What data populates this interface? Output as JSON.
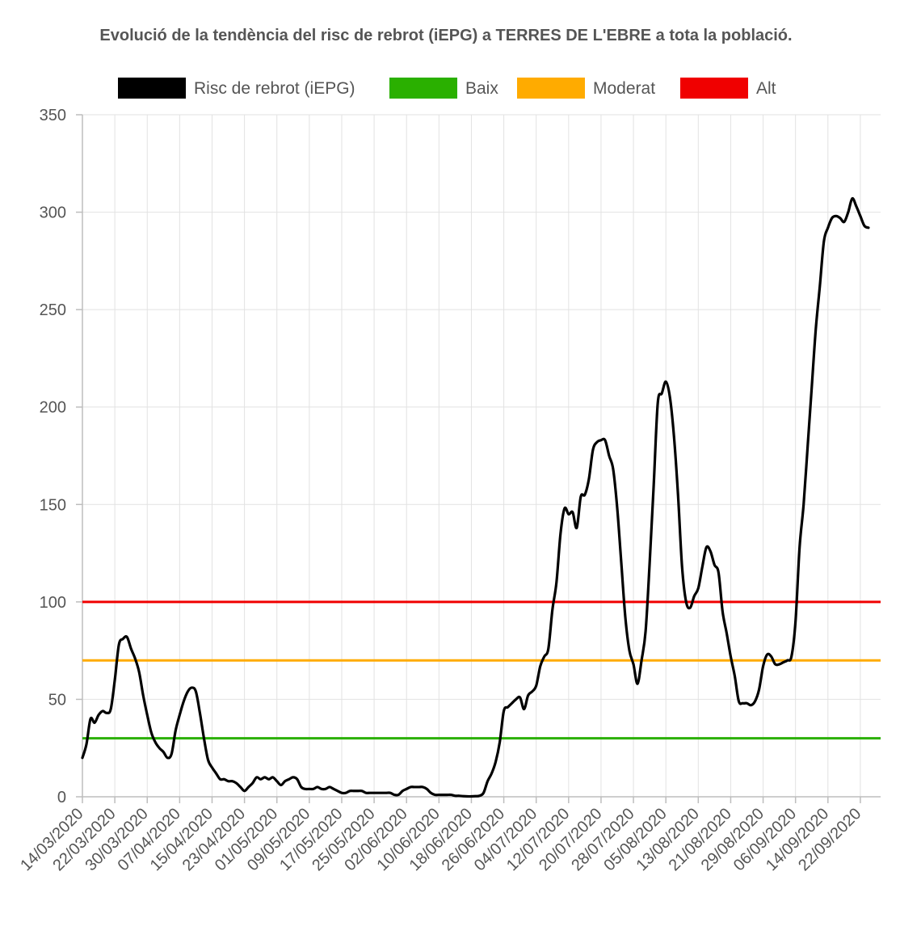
{
  "chart_data": {
    "type": "line",
    "title": "Evolució de la tendència del risc de rebrot (iEPG) a TERRES DE L'EBRE a tota la població.",
    "xlabel": "",
    "ylabel": "",
    "ylim": [
      0,
      350
    ],
    "yticks": [
      0,
      50,
      100,
      150,
      200,
      250,
      300,
      350
    ],
    "grid": true,
    "legend_position": "top",
    "x_start": "14/03/2020",
    "x_end": "27/09/2020",
    "x_tick_labels": [
      "14/03/2020",
      "22/03/2020",
      "30/03/2020",
      "07/04/2020",
      "15/04/2020",
      "23/04/2020",
      "01/05/2020",
      "09/05/2020",
      "17/05/2020",
      "25/05/2020",
      "02/06/2020",
      "10/06/2020",
      "18/06/2020",
      "26/06/2020",
      "04/07/2020",
      "12/07/2020",
      "20/07/2020",
      "28/07/2020",
      "05/08/2020",
      "13/08/2020",
      "21/08/2020",
      "29/08/2020",
      "06/09/2020",
      "14/09/2020",
      "22/09/2020"
    ],
    "legend": [
      {
        "label": "Risc de rebrot (iEPG)",
        "color": "#000000"
      },
      {
        "label": "Baix",
        "color": "#2ab000"
      },
      {
        "label": "Moderat",
        "color": "#ffab00"
      },
      {
        "label": "Alt",
        "color": "#f00000"
      }
    ],
    "thresholds": [
      {
        "name": "Baix",
        "value": 30,
        "color": "#2ab000"
      },
      {
        "name": "Moderat",
        "value": 70,
        "color": "#ffab00"
      },
      {
        "name": "Alt",
        "value": 100,
        "color": "#f00000"
      }
    ],
    "series": [
      {
        "name": "Risc de rebrot (iEPG)",
        "color": "#000000",
        "points": [
          [
            "14/03/2020",
            20
          ],
          [
            "15/03/2020",
            27
          ],
          [
            "16/03/2020",
            40
          ],
          [
            "17/03/2020",
            38
          ],
          [
            "18/03/2020",
            42
          ],
          [
            "19/03/2020",
            44
          ],
          [
            "20/03/2020",
            43
          ],
          [
            "21/03/2020",
            45
          ],
          [
            "22/03/2020",
            60
          ],
          [
            "23/03/2020",
            78
          ],
          [
            "24/03/2020",
            81
          ],
          [
            "25/03/2020",
            82
          ],
          [
            "26/03/2020",
            76
          ],
          [
            "27/03/2020",
            71
          ],
          [
            "28/03/2020",
            64
          ],
          [
            "29/03/2020",
            52
          ],
          [
            "30/03/2020",
            42
          ],
          [
            "31/03/2020",
            33
          ],
          [
            "01/04/2020",
            28
          ],
          [
            "02/04/2020",
            25
          ],
          [
            "03/04/2020",
            23
          ],
          [
            "04/04/2020",
            20
          ],
          [
            "05/04/2020",
            22
          ],
          [
            "06/04/2020",
            34
          ],
          [
            "07/04/2020",
            42
          ],
          [
            "08/04/2020",
            49
          ],
          [
            "09/04/2020",
            54
          ],
          [
            "10/04/2020",
            56
          ],
          [
            "11/04/2020",
            54
          ],
          [
            "12/04/2020",
            43
          ],
          [
            "13/04/2020",
            30
          ],
          [
            "14/04/2020",
            19
          ],
          [
            "15/04/2020",
            15
          ],
          [
            "16/04/2020",
            12
          ],
          [
            "17/04/2020",
            9
          ],
          [
            "18/04/2020",
            9
          ],
          [
            "19/04/2020",
            8
          ],
          [
            "20/04/2020",
            8
          ],
          [
            "21/04/2020",
            7
          ],
          [
            "22/04/2020",
            5
          ],
          [
            "23/04/2020",
            3
          ],
          [
            "24/04/2020",
            5
          ],
          [
            "25/04/2020",
            7
          ],
          [
            "26/04/2020",
            10
          ],
          [
            "27/04/2020",
            9
          ],
          [
            "28/04/2020",
            10
          ],
          [
            "29/04/2020",
            9
          ],
          [
            "30/04/2020",
            10
          ],
          [
            "01/05/2020",
            8
          ],
          [
            "02/05/2020",
            6
          ],
          [
            "03/05/2020",
            8
          ],
          [
            "04/05/2020",
            9
          ],
          [
            "05/05/2020",
            10
          ],
          [
            "06/05/2020",
            9
          ],
          [
            "07/05/2020",
            5
          ],
          [
            "08/05/2020",
            4
          ],
          [
            "09/05/2020",
            4
          ],
          [
            "10/05/2020",
            4
          ],
          [
            "11/05/2020",
            5
          ],
          [
            "12/05/2020",
            4
          ],
          [
            "13/05/2020",
            4
          ],
          [
            "14/05/2020",
            5
          ],
          [
            "15/05/2020",
            4
          ],
          [
            "16/05/2020",
            3
          ],
          [
            "17/05/2020",
            2
          ],
          [
            "18/05/2020",
            2
          ],
          [
            "19/05/2020",
            3
          ],
          [
            "20/05/2020",
            3
          ],
          [
            "21/05/2020",
            3
          ],
          [
            "22/05/2020",
            3
          ],
          [
            "23/05/2020",
            2
          ],
          [
            "24/05/2020",
            2
          ],
          [
            "25/05/2020",
            2
          ],
          [
            "26/05/2020",
            2
          ],
          [
            "27/05/2020",
            2
          ],
          [
            "28/05/2020",
            2
          ],
          [
            "29/05/2020",
            2
          ],
          [
            "30/05/2020",
            1
          ],
          [
            "31/05/2020",
            1
          ],
          [
            "01/06/2020",
            3
          ],
          [
            "02/06/2020",
            4
          ],
          [
            "03/06/2020",
            5
          ],
          [
            "04/06/2020",
            5
          ],
          [
            "05/06/2020",
            5
          ],
          [
            "06/06/2020",
            5
          ],
          [
            "07/06/2020",
            4
          ],
          [
            "08/06/2020",
            2
          ],
          [
            "09/06/2020",
            1
          ],
          [
            "10/06/2020",
            1
          ],
          [
            "11/06/2020",
            1
          ],
          [
            "12/06/2020",
            1
          ],
          [
            "13/06/2020",
            1
          ],
          [
            "14/06/2020",
            0.5
          ],
          [
            "15/06/2020",
            0.5
          ],
          [
            "16/06/2020",
            0.3
          ],
          [
            "17/06/2020",
            0.2
          ],
          [
            "18/06/2020",
            0.2
          ],
          [
            "19/06/2020",
            0.3
          ],
          [
            "20/06/2020",
            0.5
          ],
          [
            "21/06/2020",
            2
          ],
          [
            "22/06/2020",
            8
          ],
          [
            "23/06/2020",
            12
          ],
          [
            "24/06/2020",
            18
          ],
          [
            "25/06/2020",
            28
          ],
          [
            "26/06/2020",
            44
          ],
          [
            "27/06/2020",
            46
          ],
          [
            "28/06/2020",
            48
          ],
          [
            "29/06/2020",
            50
          ],
          [
            "30/06/2020",
            51
          ],
          [
            "01/07/2020",
            45
          ],
          [
            "02/07/2020",
            52
          ],
          [
            "03/07/2020",
            54
          ],
          [
            "04/07/2020",
            57
          ],
          [
            "05/07/2020",
            67
          ],
          [
            "06/07/2020",
            72
          ],
          [
            "07/07/2020",
            76
          ],
          [
            "08/07/2020",
            96
          ],
          [
            "09/07/2020",
            110
          ],
          [
            "10/07/2020",
            135
          ],
          [
            "11/07/2020",
            148
          ],
          [
            "12/07/2020",
            145
          ],
          [
            "13/07/2020",
            146
          ],
          [
            "14/07/2020",
            138
          ],
          [
            "15/07/2020",
            154
          ],
          [
            "16/07/2020",
            155
          ],
          [
            "17/07/2020",
            163
          ],
          [
            "18/07/2020",
            178
          ],
          [
            "19/07/2020",
            182
          ],
          [
            "20/07/2020",
            183
          ],
          [
            "21/07/2020",
            183
          ],
          [
            "22/07/2020",
            175
          ],
          [
            "23/07/2020",
            168
          ],
          [
            "24/07/2020",
            148
          ],
          [
            "25/07/2020",
            120
          ],
          [
            "26/07/2020",
            92
          ],
          [
            "27/07/2020",
            75
          ],
          [
            "28/07/2020",
            68
          ],
          [
            "29/07/2020",
            58
          ],
          [
            "30/07/2020",
            70
          ],
          [
            "31/07/2020",
            85
          ],
          [
            "01/08/2020",
            120
          ],
          [
            "02/08/2020",
            160
          ],
          [
            "03/08/2020",
            202
          ],
          [
            "04/08/2020",
            207
          ],
          [
            "05/08/2020",
            213
          ],
          [
            "06/08/2020",
            205
          ],
          [
            "07/08/2020",
            185
          ],
          [
            "08/08/2020",
            155
          ],
          [
            "09/08/2020",
            118
          ],
          [
            "10/08/2020",
            100
          ],
          [
            "11/08/2020",
            97
          ],
          [
            "12/08/2020",
            103
          ],
          [
            "13/08/2020",
            107
          ],
          [
            "14/08/2020",
            118
          ],
          [
            "15/08/2020",
            128
          ],
          [
            "16/08/2020",
            126
          ],
          [
            "17/08/2020",
            119
          ],
          [
            "18/08/2020",
            115
          ],
          [
            "19/08/2020",
            95
          ],
          [
            "20/08/2020",
            84
          ],
          [
            "21/08/2020",
            72
          ],
          [
            "22/08/2020",
            62
          ],
          [
            "23/08/2020",
            49
          ],
          [
            "24/08/2020",
            48
          ],
          [
            "25/08/2020",
            48
          ],
          [
            "26/08/2020",
            47
          ],
          [
            "27/08/2020",
            49
          ],
          [
            "28/08/2020",
            55
          ],
          [
            "29/08/2020",
            67
          ],
          [
            "30/08/2020",
            73
          ],
          [
            "31/08/2020",
            72
          ],
          [
            "01/09/2020",
            68
          ],
          [
            "02/09/2020",
            68
          ],
          [
            "03/09/2020",
            69
          ],
          [
            "04/09/2020",
            70
          ],
          [
            "05/09/2020",
            72
          ],
          [
            "06/09/2020",
            90
          ],
          [
            "07/09/2020",
            128
          ],
          [
            "08/09/2020",
            150
          ],
          [
            "09/09/2020",
            180
          ],
          [
            "10/09/2020",
            210
          ],
          [
            "11/09/2020",
            240
          ],
          [
            "12/09/2020",
            262
          ],
          [
            "13/09/2020",
            285
          ],
          [
            "14/09/2020",
            292
          ],
          [
            "15/09/2020",
            297
          ],
          [
            "16/09/2020",
            298
          ],
          [
            "17/09/2020",
            297
          ],
          [
            "18/09/2020",
            295
          ],
          [
            "19/09/2020",
            300
          ],
          [
            "20/09/2020",
            307
          ],
          [
            "21/09/2020",
            303
          ],
          [
            "22/09/2020",
            298
          ],
          [
            "23/09/2020",
            293
          ],
          [
            "24/09/2020",
            292
          ]
        ]
      }
    ]
  }
}
